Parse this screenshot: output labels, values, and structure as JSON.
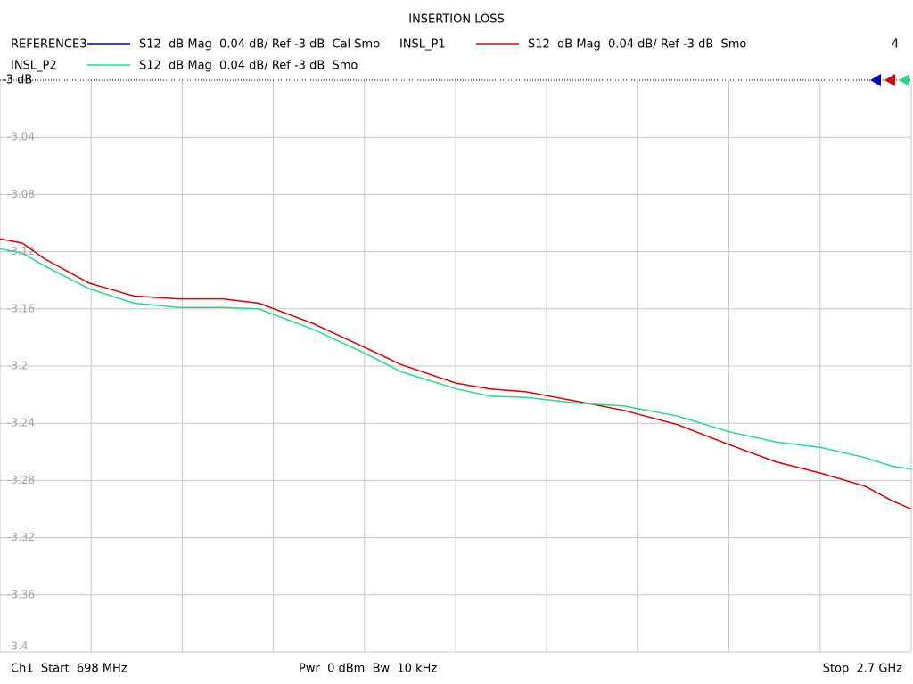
{
  "chart_data": {
    "type": "line",
    "title": "INSERTION LOSS",
    "marker_count": "4",
    "footer": {
      "left": "Ch1  Start  698 MHz",
      "center": "Pwr  0 dBm  Bw  10 kHz",
      "right": "Stop  2.7 GHz"
    },
    "xlim": [
      698,
      2700
    ],
    "xticks": [
      698,
      898.2,
      1098.4,
      1298.6,
      1498.8,
      1699,
      1899.2,
      2099.4,
      2299.6,
      2499.8,
      2700
    ],
    "ylim": [
      -3.4,
      -3
    ],
    "yticks": [
      {
        "value": -3,
        "label": "-3 dB"
      },
      -3.04,
      -3.08,
      -3.12,
      -3.16,
      -3.2,
      -3.24,
      -3.28,
      -3.32,
      -3.36,
      -3.4
    ],
    "grid": true,
    "x": [
      698,
      747.0,
      795.9,
      893.9,
      991.8,
      1089.8,
      1187.7,
      1266.1,
      1383.6,
      1499.2,
      1579.5,
      1700.9,
      1775.4,
      1853.8,
      1971.3,
      2069.2,
      2186.8,
      2300.4,
      2402.3,
      2502.2,
      2598.2,
      2656.9,
      2700
    ],
    "series": [
      {
        "name": "REFERENCE3",
        "description": "S12  dB Mag  0.04 dB/ Ref -3 dB  Cal Smo",
        "color": "#0000cc",
        "values": [
          null,
          null,
          null,
          null,
          null,
          null,
          null,
          null,
          null,
          null,
          null,
          null,
          null,
          null,
          null,
          null,
          null,
          null,
          null,
          null,
          null,
          null,
          null
        ]
      },
      {
        "name": "INSL_P1",
        "description": "S12  dB Mag  0.04 dB/ Ref -3 dB  Smo",
        "color": "#dd0000",
        "values": [
          -3.111,
          -3.114,
          -3.125,
          -3.142,
          -3.151,
          -3.153,
          -3.153,
          -3.156,
          -3.17,
          -3.187,
          -3.199,
          -3.212,
          -3.216,
          -3.218,
          -3.225,
          -3.231,
          -3.241,
          -3.255,
          -3.267,
          -3.275,
          -3.284,
          -3.294,
          -3.3
        ]
      },
      {
        "name": "INSL_P2",
        "description": "S12  dB Mag  0.04 dB/ Ref -3 dB  Smo",
        "color": "#22dd88",
        "values": [
          -3.118,
          -3.121,
          -3.13,
          -3.146,
          -3.156,
          -3.159,
          -3.159,
          -3.16,
          -3.174,
          -3.191,
          -3.204,
          -3.216,
          -3.221,
          -3.222,
          -3.226,
          -3.228,
          -3.235,
          -3.246,
          -3.253,
          -3.257,
          -3.264,
          -3.27,
          -3.272
        ]
      }
    ]
  }
}
